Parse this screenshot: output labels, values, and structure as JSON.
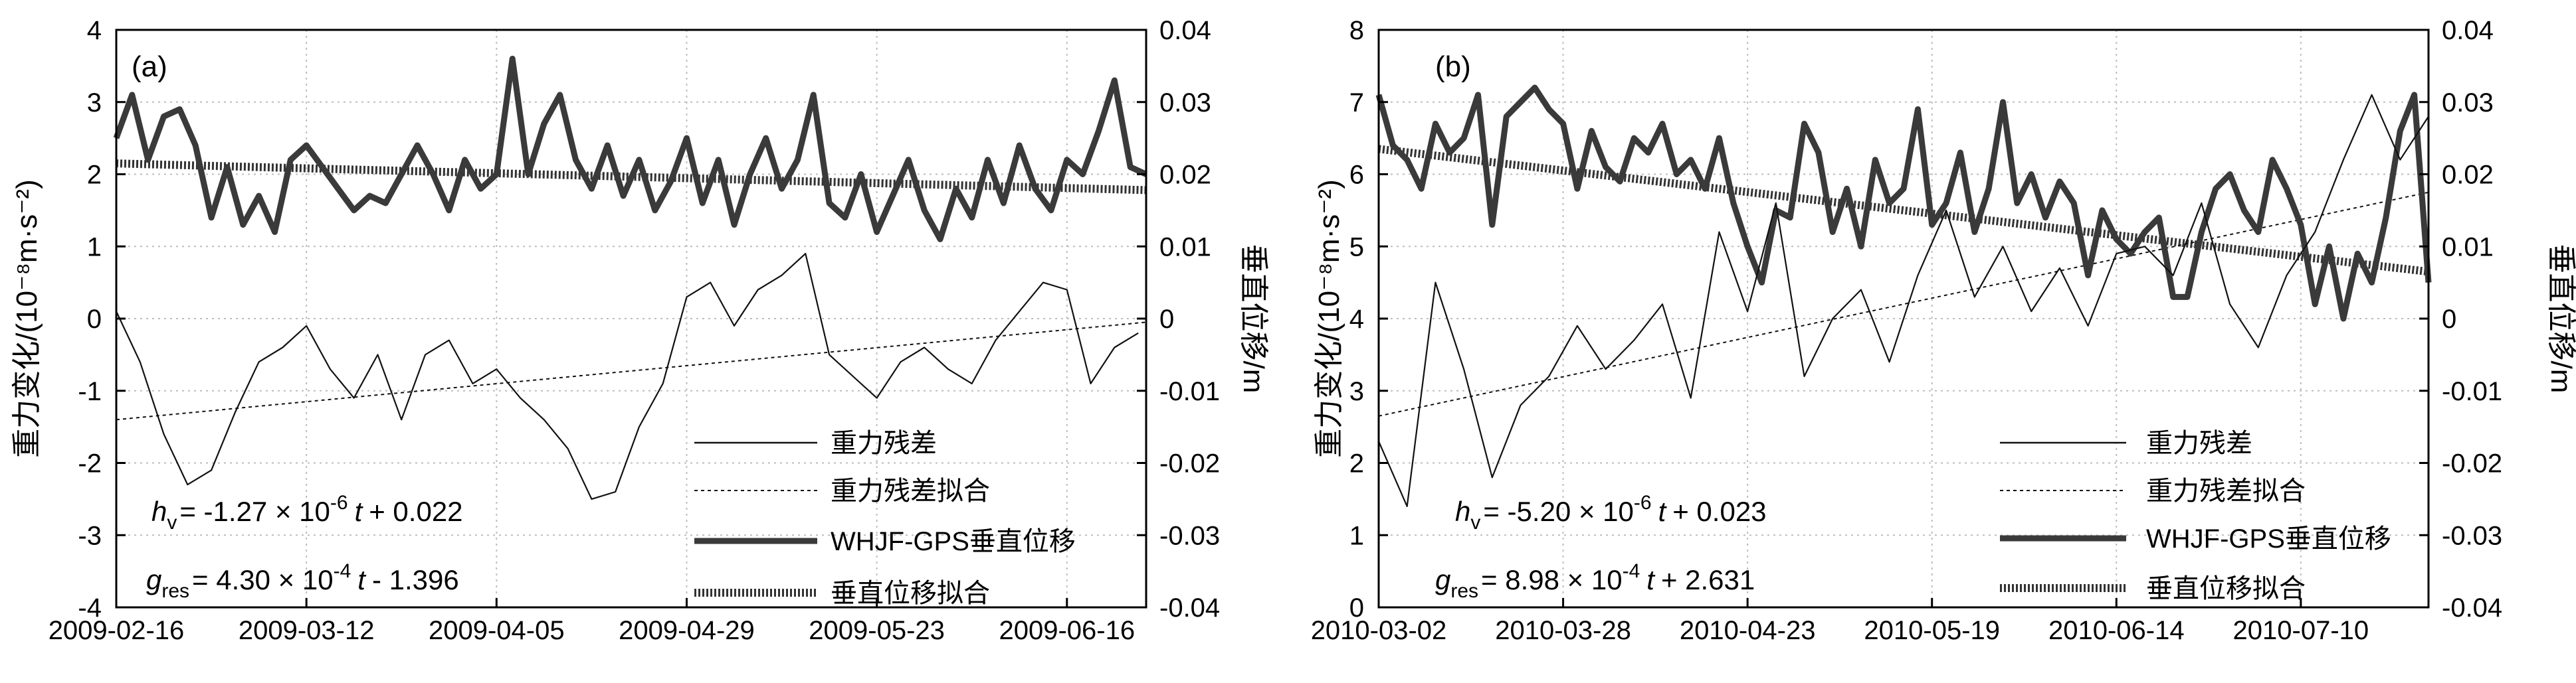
{
  "chart_data": [
    {
      "type": "line",
      "panel_label": "(a)",
      "x_tick_labels": [
        "2009-02-16",
        "2009-03-12",
        "2009-04-05",
        "2009-04-29",
        "2009-05-23",
        "2009-06-16"
      ],
      "x_tick_days": [
        0,
        24,
        48,
        72,
        96,
        120
      ],
      "xlim": [
        0,
        130
      ],
      "y_left": {
        "label": "重力变化/(10⁻⁸m·s⁻²)",
        "ylim": [
          -4,
          4
        ],
        "ticks": [
          4,
          3,
          2,
          1,
          0,
          -1,
          -2,
          -3,
          -4
        ]
      },
      "y_right": {
        "label": "垂直位移/m",
        "ylim": [
          -0.04,
          0.04
        ],
        "ticks": [
          0.04,
          0.03,
          0.02,
          0.01,
          0,
          -0.01,
          -0.02,
          -0.03,
          -0.04
        ],
        "tick_labels": [
          "0.04",
          "0.03",
          "0.02",
          "0.01",
          "0",
          "-0.01",
          "-0.02",
          "-0.03",
          "-0.04"
        ]
      },
      "series": [
        {
          "name": "重力残差",
          "axis": "left",
          "style": "thin-solid",
          "x": [
            0,
            3,
            6,
            9,
            12,
            15,
            18,
            21,
            24,
            27,
            30,
            33,
            36,
            39,
            42,
            45,
            48,
            51,
            54,
            57,
            60,
            63,
            66,
            69,
            72,
            75,
            78,
            81,
            84,
            87,
            90,
            93,
            96,
            99,
            102,
            105,
            108,
            111,
            114,
            117,
            120,
            123,
            126,
            129
          ],
          "values": [
            0.1,
            -0.6,
            -1.6,
            -2.3,
            -2.1,
            -1.3,
            -0.6,
            -0.4,
            -0.1,
            -0.7,
            -1.1,
            -0.5,
            -1.4,
            -0.5,
            -0.3,
            -0.9,
            -0.7,
            -1.1,
            -1.4,
            -1.8,
            -2.5,
            -2.4,
            -1.5,
            -0.9,
            0.3,
            0.5,
            -0.1,
            0.4,
            0.6,
            0.9,
            -0.5,
            -0.8,
            -1.1,
            -0.6,
            -0.4,
            -0.7,
            -0.9,
            -0.3,
            0.1,
            0.5,
            0.4,
            -0.9,
            -0.4,
            -0.2
          ]
        },
        {
          "name": "重力残差拟合",
          "axis": "left",
          "style": "thin-dashed",
          "x": [
            0,
            130
          ],
          "values": [
            -1.4,
            -0.05
          ]
        },
        {
          "name": "WHJF-GPS垂直位移",
          "axis": "right",
          "style": "thick-solid",
          "x": [
            0,
            2,
            4,
            6,
            8,
            10,
            12,
            14,
            16,
            18,
            20,
            22,
            24,
            26,
            28,
            30,
            32,
            34,
            36,
            38,
            40,
            42,
            44,
            46,
            48,
            50,
            52,
            54,
            56,
            58,
            60,
            62,
            64,
            66,
            68,
            70,
            72,
            74,
            76,
            78,
            80,
            82,
            84,
            86,
            88,
            90,
            92,
            94,
            96,
            98,
            100,
            102,
            104,
            106,
            108,
            110,
            112,
            114,
            116,
            118,
            120,
            122,
            124,
            126,
            128,
            130
          ],
          "values": [
            0.025,
            0.031,
            0.022,
            0.028,
            0.029,
            0.024,
            0.014,
            0.021,
            0.013,
            0.017,
            0.012,
            0.022,
            0.024,
            0.021,
            0.018,
            0.015,
            0.017,
            0.016,
            0.02,
            0.024,
            0.02,
            0.015,
            0.022,
            0.018,
            0.02,
            0.036,
            0.02,
            0.027,
            0.031,
            0.022,
            0.018,
            0.024,
            0.017,
            0.022,
            0.015,
            0.019,
            0.025,
            0.016,
            0.022,
            0.013,
            0.02,
            0.025,
            0.018,
            0.022,
            0.031,
            0.016,
            0.014,
            0.02,
            0.012,
            0.017,
            0.022,
            0.015,
            0.011,
            0.018,
            0.014,
            0.022,
            0.016,
            0.024,
            0.018,
            0.015,
            0.022,
            0.02,
            0.026,
            0.033,
            0.021,
            0.02
          ]
        },
        {
          "name": "垂直位移拟合",
          "axis": "right",
          "style": "thick-hatched",
          "x": [
            0,
            130
          ],
          "values": [
            0.0215,
            0.0178
          ]
        }
      ],
      "legend": [
        "重力残差",
        "重力残差拟合",
        "WHJF-GPS垂直位移",
        "垂直位移拟合"
      ],
      "legend_position": "bottom-right",
      "equations": {
        "hv_symbol": "h",
        "hv_sub": "v",
        "hv_text": "= -1.27 × 10",
        "hv_exp": "-6",
        "hv_t": "t",
        "hv_rest": "+ 0.022",
        "g_symbol": "g",
        "g_sub": "res",
        "g_text": "=  4.30 × 10",
        "g_exp": "-4",
        "g_t": "t",
        "g_rest": "- 1.396"
      }
    },
    {
      "type": "line",
      "panel_label": "(b)",
      "x_tick_labels": [
        "2010-03-02",
        "2010-03-28",
        "2010-04-23",
        "2010-05-19",
        "2010-06-14",
        "2010-07-10"
      ],
      "x_tick_days": [
        0,
        26,
        52,
        78,
        104,
        130
      ],
      "xlim": [
        0,
        148
      ],
      "y_left": {
        "label": "重力变化/(10⁻⁸m·s⁻²)",
        "ylim": [
          0,
          8
        ],
        "ticks": [
          8,
          7,
          6,
          5,
          4,
          3,
          2,
          1,
          0
        ]
      },
      "y_right": {
        "label": "垂直位移/m",
        "ylim": [
          -0.04,
          0.04
        ],
        "ticks": [
          0.04,
          0.03,
          0.02,
          0.01,
          0,
          -0.01,
          -0.02,
          -0.03,
          -0.04
        ],
        "tick_labels": [
          "0.04",
          "0.03",
          "0.02",
          "0.01",
          "0",
          "-0.01",
          "-0.02",
          "-0.03",
          "-0.04"
        ]
      },
      "series": [
        {
          "name": "重力残差",
          "axis": "left",
          "style": "thin-solid",
          "x": [
            0,
            4,
            8,
            12,
            16,
            20,
            24,
            28,
            32,
            36,
            40,
            44,
            48,
            52,
            56,
            60,
            64,
            68,
            72,
            76,
            80,
            84,
            88,
            92,
            96,
            100,
            104,
            108,
            112,
            116,
            120,
            124,
            128,
            132,
            136,
            140,
            144,
            148
          ],
          "values": [
            2.3,
            1.4,
            4.5,
            3.3,
            1.8,
            2.8,
            3.2,
            3.9,
            3.3,
            3.7,
            4.2,
            2.9,
            5.2,
            4.1,
            5.6,
            3.2,
            4.0,
            4.4,
            3.4,
            4.6,
            5.5,
            4.3,
            5.0,
            4.1,
            4.7,
            3.9,
            4.9,
            5.0,
            4.6,
            5.6,
            4.2,
            3.6,
            4.6,
            5.2,
            6.2,
            7.1,
            6.2,
            6.8
          ]
        },
        {
          "name": "重力残差拟合",
          "axis": "left",
          "style": "thin-dashed",
          "x": [
            0,
            148
          ],
          "values": [
            2.65,
            5.75
          ]
        },
        {
          "name": "WHJF-GPS垂直位移",
          "axis": "right",
          "style": "thick-solid",
          "x": [
            0,
            2,
            4,
            6,
            8,
            10,
            12,
            14,
            16,
            18,
            20,
            22,
            24,
            26,
            28,
            30,
            32,
            34,
            36,
            38,
            40,
            42,
            44,
            46,
            48,
            50,
            52,
            54,
            56,
            58,
            60,
            62,
            64,
            66,
            68,
            70,
            72,
            74,
            76,
            78,
            80,
            82,
            84,
            86,
            88,
            90,
            92,
            94,
            96,
            98,
            100,
            102,
            104,
            106,
            108,
            110,
            112,
            114,
            116,
            118,
            120,
            122,
            124,
            126,
            128,
            130,
            132,
            134,
            136,
            138,
            140,
            142,
            144,
            146,
            148
          ],
          "values": [
            0.031,
            0.024,
            0.022,
            0.018,
            0.027,
            0.023,
            0.025,
            0.031,
            0.013,
            0.028,
            0.03,
            0.032,
            0.029,
            0.027,
            0.018,
            0.026,
            0.021,
            0.019,
            0.025,
            0.023,
            0.027,
            0.02,
            0.022,
            0.018,
            0.025,
            0.016,
            0.01,
            0.005,
            0.015,
            0.014,
            0.027,
            0.023,
            0.012,
            0.018,
            0.01,
            0.022,
            0.016,
            0.018,
            0.029,
            0.013,
            0.016,
            0.023,
            0.012,
            0.018,
            0.03,
            0.016,
            0.02,
            0.014,
            0.019,
            0.016,
            0.006,
            0.015,
            0.011,
            0.009,
            0.012,
            0.014,
            0.003,
            0.003,
            0.012,
            0.018,
            0.02,
            0.015,
            0.012,
            0.022,
            0.018,
            0.013,
            0.002,
            0.01,
            0.0,
            0.009,
            0.005,
            0.014,
            0.026,
            0.031,
            0.005
          ]
        },
        {
          "name": "垂直位移拟合",
          "axis": "right",
          "style": "thick-hatched",
          "x": [
            0,
            148
          ],
          "values": [
            0.0235,
            0.0065
          ]
        }
      ],
      "legend": [
        "重力残差",
        "重力残差拟合",
        "WHJF-GPS垂直位移",
        "垂直位移拟合"
      ],
      "legend_position": "bottom-right",
      "equations": {
        "hv_symbol": "h",
        "hv_sub": "v",
        "hv_text": "= -5.20 × 10",
        "hv_exp": "-6",
        "hv_t": "t",
        "hv_rest": "+ 0.023",
        "g_symbol": "g",
        "g_sub": "res",
        "g_text": "=  8.98 × 10",
        "g_exp": "-4",
        "g_t": "t",
        "g_rest": "+ 2.631"
      }
    }
  ]
}
